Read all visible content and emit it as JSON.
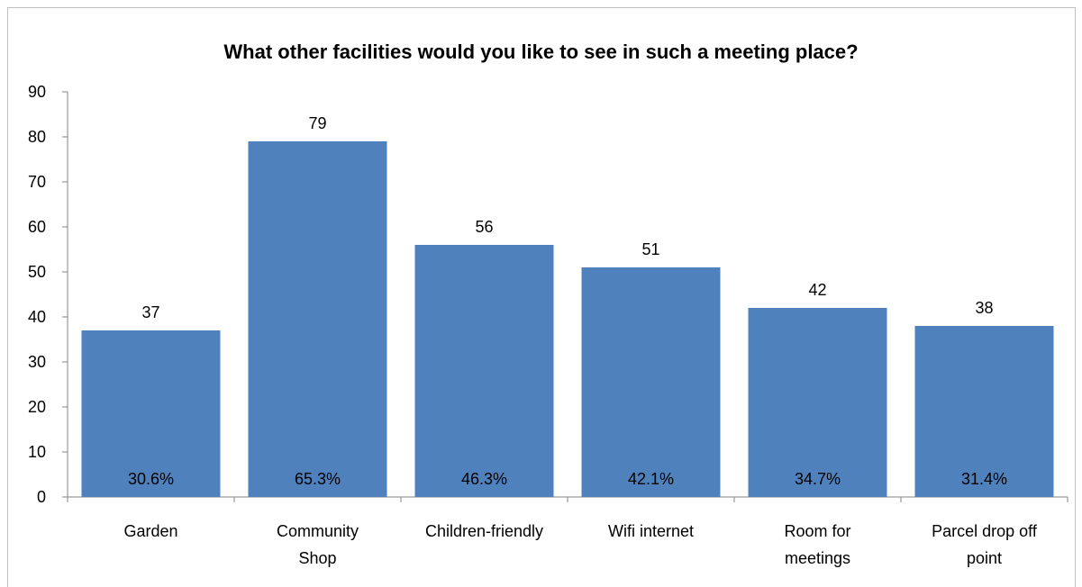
{
  "chart_data": {
    "type": "bar",
    "title": "What other facilities would you like to see in such a meeting place?",
    "categories": [
      [
        "Garden"
      ],
      [
        "Community",
        "Shop"
      ],
      [
        "Children-friendly"
      ],
      [
        "Wifi internet"
      ],
      [
        "Room for",
        "meetings"
      ],
      [
        "Parcel drop off",
        "point"
      ]
    ],
    "values": [
      37,
      79,
      56,
      51,
      42,
      38
    ],
    "value_labels": [
      "37",
      "79",
      "56",
      "51",
      "42",
      "38"
    ],
    "percent_labels": [
      "30.6%",
      "65.3%",
      "46.3%",
      "42.1%",
      "34.7%",
      "31.4%"
    ],
    "ylim": [
      0,
      90
    ],
    "yticks": [
      0,
      10,
      20,
      30,
      40,
      50,
      60,
      70,
      80,
      90
    ],
    "xlabel": "",
    "ylabel": "",
    "grid": false,
    "legend": "none",
    "bar_color": "#4f81bd",
    "axis_color": "#868686"
  }
}
